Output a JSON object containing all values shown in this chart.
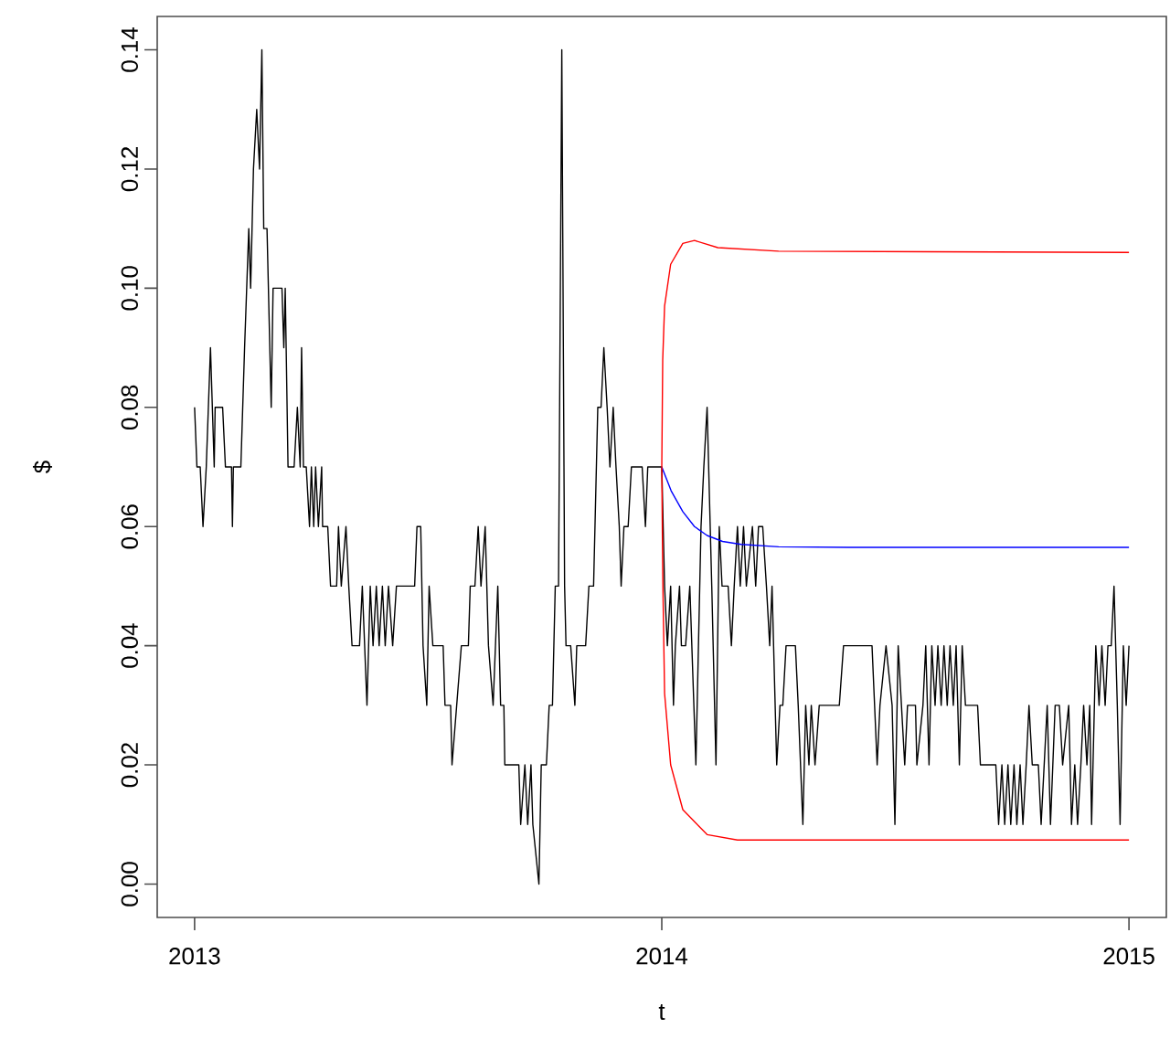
{
  "chart_data": {
    "type": "line",
    "xlabel": "t",
    "ylabel": "$",
    "xlim": [
      2012.92,
      2015.08
    ],
    "ylim": [
      -0.0056,
      0.1456
    ],
    "xticks": [
      2013,
      2014,
      2015
    ],
    "yticks": [
      {
        "value": 0,
        "label": "0.00"
      },
      {
        "value": 0.02,
        "label": "0.02"
      },
      {
        "value": 0.04,
        "label": "0.04"
      },
      {
        "value": 0.06,
        "label": "0.06"
      },
      {
        "value": 0.08,
        "label": "0.08"
      },
      {
        "value": 0.1,
        "label": "0.10"
      },
      {
        "value": 0.12,
        "label": "0.12"
      },
      {
        "value": 0.14,
        "label": "0.14"
      }
    ],
    "series": [
      {
        "color": "#000000",
        "x": [
          2013.0,
          2013.005,
          2013.012,
          2013.018,
          2013.025,
          2013.034,
          2013.042,
          2013.044,
          2013.06,
          2013.066,
          2013.079,
          2013.081,
          2013.083,
          2013.099,
          2013.107,
          2013.116,
          2013.12,
          2013.126,
          2013.133,
          2013.139,
          2013.144,
          2013.148,
          2013.155,
          2013.164,
          2013.168,
          2013.187,
          2013.191,
          2013.194,
          2013.2,
          2013.213,
          2013.22,
          2013.226,
          2013.229,
          2013.233,
          2013.239,
          2013.246,
          2013.25,
          2013.255,
          2013.259,
          2013.265,
          2013.272,
          2013.274,
          2013.285,
          2013.291,
          2013.304,
          2013.308,
          2013.314,
          2013.324,
          2013.33,
          2013.337,
          2013.353,
          2013.359,
          2013.369,
          2013.376,
          2013.382,
          2013.389,
          2013.395,
          2013.402,
          2013.408,
          2013.415,
          2013.424,
          2013.432,
          2013.471,
          2013.476,
          2013.484,
          2013.489,
          2013.497,
          2013.502,
          2013.51,
          2013.532,
          2013.536,
          2013.548,
          2013.551,
          2013.561,
          2013.571,
          2013.586,
          2013.59,
          2013.6,
          2013.607,
          2013.613,
          2013.622,
          2013.629,
          2013.639,
          2013.649,
          2013.655,
          2013.662,
          2013.664,
          2013.694,
          2013.698,
          2013.707,
          2013.713,
          2013.72,
          2013.724,
          2013.737,
          2013.742,
          2013.753,
          2013.759,
          2013.766,
          2013.772,
          2013.779,
          2013.786,
          2013.792,
          2013.795,
          2013.805,
          2013.814,
          2013.818,
          2013.837,
          2013.844,
          2013.854,
          2013.863,
          2013.87,
          2013.876,
          2013.883,
          2013.889,
          2013.896,
          2013.902,
          2013.909,
          2013.913,
          2013.919,
          2013.928,
          2013.935,
          2013.958,
          2013.965,
          2013.97,
          2013.993,
          2014.0,
          2014.006,
          2014.012,
          2014.019,
          2014.025,
          2014.029,
          2014.038,
          2014.042,
          2014.051,
          2014.06,
          2014.073,
          2014.084,
          2014.09,
          2014.097,
          2014.107,
          2014.116,
          2014.123,
          2014.129,
          2014.142,
          2014.149,
          2014.155,
          2014.162,
          2014.168,
          2014.175,
          2014.181,
          2014.194,
          2014.201,
          2014.207,
          2014.216,
          2014.224,
          2014.231,
          2014.236,
          2014.246,
          2014.253,
          2014.259,
          2014.266,
          2014.286,
          2014.292,
          2014.302,
          2014.308,
          2014.315,
          2014.32,
          2014.328,
          2014.337,
          2014.38,
          2014.389,
          2014.45,
          2014.461,
          2014.467,
          2014.48,
          2014.493,
          2014.499,
          2014.506,
          2014.513,
          2014.52,
          2014.526,
          2014.543,
          2014.546,
          2014.559,
          2014.565,
          2014.572,
          2014.578,
          2014.585,
          2014.591,
          2014.598,
          2014.604,
          2014.611,
          2014.617,
          2014.624,
          2014.63,
          2014.637,
          2014.643,
          2014.65,
          2014.676,
          2014.682,
          2014.715,
          2014.721,
          2014.728,
          2014.734,
          2014.741,
          2014.747,
          2014.754,
          2014.76,
          2014.767,
          2014.773,
          2014.78,
          2014.786,
          2014.793,
          2014.806,
          2014.812,
          2014.825,
          2014.832,
          2014.842,
          2014.851,
          2014.858,
          2014.871,
          2014.877,
          2014.884,
          2014.89,
          2014.897,
          2014.903,
          2014.91,
          2014.916,
          2014.92,
          2014.929,
          2014.936,
          2014.942,
          2014.949,
          2014.955,
          2014.962,
          2014.968,
          2014.975,
          2014.981,
          2014.988,
          2014.994,
          2015.0
        ],
        "values": [
          0.08,
          0.07,
          0.07,
          0.06,
          0.07,
          0.09,
          0.07,
          0.08,
          0.08,
          0.07,
          0.07,
          0.06,
          0.07,
          0.07,
          0.09,
          0.11,
          0.1,
          0.12,
          0.13,
          0.12,
          0.14,
          0.11,
          0.11,
          0.08,
          0.1,
          0.1,
          0.09,
          0.1,
          0.07,
          0.07,
          0.08,
          0.07,
          0.09,
          0.07,
          0.07,
          0.06,
          0.07,
          0.06,
          0.07,
          0.06,
          0.07,
          0.06,
          0.06,
          0.05,
          0.05,
          0.06,
          0.05,
          0.06,
          0.05,
          0.04,
          0.04,
          0.05,
          0.03,
          0.05,
          0.04,
          0.05,
          0.04,
          0.05,
          0.04,
          0.05,
          0.04,
          0.05,
          0.05,
          0.06,
          0.06,
          0.04,
          0.03,
          0.05,
          0.04,
          0.04,
          0.03,
          0.03,
          0.02,
          0.03,
          0.04,
          0.04,
          0.05,
          0.05,
          0.06,
          0.05,
          0.06,
          0.04,
          0.03,
          0.05,
          0.03,
          0.03,
          0.02,
          0.02,
          0.01,
          0.02,
          0.01,
          0.02,
          0.01,
          0.0,
          0.02,
          0.02,
          0.03,
          0.03,
          0.05,
          0.05,
          0.14,
          0.05,
          0.04,
          0.04,
          0.03,
          0.04,
          0.04,
          0.05,
          0.05,
          0.08,
          0.08,
          0.09,
          0.08,
          0.07,
          0.08,
          0.07,
          0.06,
          0.05,
          0.06,
          0.06,
          0.07,
          0.07,
          0.06,
          0.07,
          0.07,
          0.07,
          0.05,
          0.04,
          0.05,
          0.03,
          0.04,
          0.05,
          0.04,
          0.04,
          0.05,
          0.02,
          0.06,
          0.07,
          0.08,
          0.05,
          0.02,
          0.06,
          0.05,
          0.05,
          0.04,
          0.05,
          0.06,
          0.05,
          0.06,
          0.05,
          0.06,
          0.05,
          0.06,
          0.06,
          0.05,
          0.04,
          0.05,
          0.02,
          0.03,
          0.03,
          0.04,
          0.04,
          0.03,
          0.01,
          0.03,
          0.02,
          0.03,
          0.02,
          0.03,
          0.03,
          0.04,
          0.04,
          0.02,
          0.03,
          0.04,
          0.03,
          0.01,
          0.04,
          0.03,
          0.02,
          0.03,
          0.03,
          0.02,
          0.03,
          0.04,
          0.02,
          0.04,
          0.03,
          0.04,
          0.03,
          0.04,
          0.03,
          0.04,
          0.03,
          0.04,
          0.02,
          0.04,
          0.03,
          0.03,
          0.02,
          0.02,
          0.01,
          0.02,
          0.01,
          0.02,
          0.01,
          0.02,
          0.01,
          0.02,
          0.01,
          0.02,
          0.03,
          0.02,
          0.02,
          0.01,
          0.03,
          0.01,
          0.03,
          0.03,
          0.02,
          0.03,
          0.01,
          0.02,
          0.01,
          0.02,
          0.03,
          0.02,
          0.03,
          0.01,
          0.04,
          0.03,
          0.04,
          0.03,
          0.04,
          0.04,
          0.05,
          0.03,
          0.01,
          0.04,
          0.03,
          0.04
        ]
      },
      {
        "color": "#0000ff",
        "x": [
          2014.0,
          2014.02,
          2014.045,
          2014.07,
          2014.097,
          2014.13,
          2014.17,
          2014.25,
          2014.4,
          2015.0
        ],
        "values": [
          0.07,
          0.066,
          0.0625,
          0.06,
          0.0585,
          0.0575,
          0.057,
          0.0566,
          0.0565,
          0.0565
        ]
      },
      {
        "color": "#ff0000",
        "x": [
          2015.0,
          2014.3,
          2014.162,
          2014.097,
          2014.045,
          2014.019,
          2014.006,
          2014.002,
          2014.0,
          2014.002,
          2014.006,
          2014.019,
          2014.045,
          2014.07,
          2014.12,
          2014.25,
          2015.0
        ],
        "values": [
          0.0074,
          0.0074,
          0.0074,
          0.0083,
          0.0125,
          0.02,
          0.032,
          0.052,
          0.07,
          0.088,
          0.097,
          0.104,
          0.1075,
          0.108,
          0.1068,
          0.1062,
          0.106
        ]
      }
    ]
  }
}
